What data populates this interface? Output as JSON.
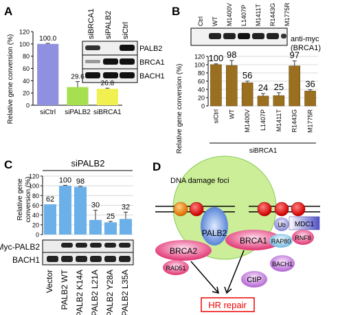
{
  "panels": {
    "A": {
      "label": "A"
    },
    "B": {
      "label": "B"
    },
    "C": {
      "label": "C"
    },
    "D": {
      "label": "D"
    }
  },
  "chart_data": [
    {
      "type": "bar",
      "panel": "A",
      "ylabel": "Relative gene conversion (%)",
      "categories": [
        "siCtrl",
        "siPALB2",
        "siBRCA1"
      ],
      "values": [
        100.0,
        29.6,
        26.8
      ],
      "value_labels": [
        "100.0",
        "29.6",
        "26.8"
      ],
      "errors": [
        1,
        9,
        1
      ],
      "colors": [
        "#9090e0",
        "#a6e050",
        "#f0f050"
      ],
      "ylim": [
        0,
        120
      ],
      "yticks": [
        0,
        20,
        40,
        60,
        80,
        100,
        120
      ],
      "blot": {
        "lanes": [
          "siBRCA1",
          "siPALB2",
          "siCtrl"
        ],
        "rows": [
          "PALB2",
          "BRCA1",
          "BACH1"
        ]
      }
    },
    {
      "type": "bar",
      "panel": "B",
      "ylabel": "Relative gene conversion (%)",
      "categories": [
        "siCtrl",
        "WT",
        "M1400V",
        "L1407P",
        "M1411T",
        "R1443G",
        "M1775R"
      ],
      "values": [
        100,
        98,
        56,
        24,
        25,
        97,
        36
      ],
      "value_labels": [
        "100",
        "98",
        "56",
        "24",
        "25",
        "97",
        "36"
      ],
      "errors": [
        2,
        12,
        4,
        6,
        7,
        12,
        3
      ],
      "bar_color": "#9a7020",
      "ylim": [
        0,
        120
      ],
      "yticks": [
        0,
        20,
        40,
        60,
        80,
        100,
        120
      ],
      "group_label": "siBRCA1",
      "blot": {
        "lanes": [
          "Ctrl",
          "WT",
          "M1400V",
          "L1407P",
          "M1411T",
          "R1443G",
          "M1775R"
        ],
        "label_line1": "anti-myc",
        "label_line2": "(BRCA1)"
      }
    },
    {
      "type": "bar",
      "panel": "C",
      "title": "siPALB2",
      "ylabel_line1": "Relative gene",
      "ylabel_line2": "conversion (%)",
      "categories": [
        "Vector",
        "PALB2 WT",
        "PALB2 K14A",
        "PALB2 L21A",
        "PALB2 Y28A",
        "PALB2 L35A"
      ],
      "values": [
        62,
        100,
        98,
        30,
        25,
        32
      ],
      "value_labels": [
        "62",
        "100",
        "98",
        "30",
        "25",
        "32"
      ],
      "errors": [
        0,
        1,
        1,
        20,
        2,
        14
      ],
      "bar_color": "#6cb0ea",
      "ylim": [
        0,
        120
      ],
      "yticks": [
        0,
        20,
        40,
        60,
        80,
        100,
        120
      ],
      "blot": {
        "rows": [
          "Myc-PALB2",
          "BACH1"
        ]
      }
    }
  ],
  "diagram": {
    "foci_label": "DNA damage foci",
    "palb2": "PALB2",
    "brca2": "BRCA2",
    "brca1": "BRCA1",
    "rad51": "RAD51",
    "ub": "Ub",
    "mdc1": "MDC1",
    "rnf8": "RNF8",
    "rap80": "RAP80",
    "bach1": "BACH1",
    "ctip": "CtIP",
    "hr": "HR repair"
  }
}
